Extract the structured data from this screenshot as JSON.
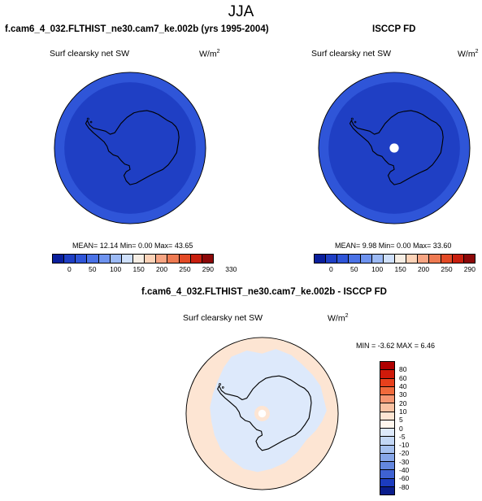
{
  "season": "JJA",
  "panels": [
    {
      "title": "f.cam6_4_032.FLTHIST_ne30.cam7_ke.002b (yrs 1995-2004)",
      "var_name": "Surf clearsky net SW",
      "units_base": "W/m",
      "units_exp": "2",
      "stats": "MEAN=  12.14  Min=   0.00  Max=  43.65"
    },
    {
      "title": "ISCCP FD",
      "var_name": "Surf clearsky net SW",
      "units_base": "W/m",
      "units_exp": "2",
      "stats": "MEAN=   9.98  Min=   0.00  Max=  33.60"
    },
    {
      "title": "f.cam6_4_032.FLTHIST_ne30.cam7_ke.002b - ISCCP FD",
      "var_name": "Surf clearsky net SW",
      "units_base": "W/m",
      "units_exp": "2",
      "stats": "MIN =  -3.62 MAX =   6.46"
    }
  ],
  "colorbar_abs": {
    "colors": [
      "#0a1f9c",
      "#1f3fc4",
      "#2f55d8",
      "#4a72e6",
      "#6e93ef",
      "#9cbaf5",
      "#cfe0fb",
      "#f6eee4",
      "#fcd3b8",
      "#f7a583",
      "#ee7a52",
      "#e34a26",
      "#c81f0e",
      "#8c0808"
    ],
    "labels": [
      "0",
      "50",
      "100",
      "150",
      "200",
      "250",
      "290",
      "330"
    ]
  },
  "colorbar_diff": {
    "colors": [
      "#b00000",
      "#cf1a0a",
      "#e8401c",
      "#f06a3c",
      "#f59672",
      "#f9c2a3",
      "#fde5d3",
      "#fff7ee",
      "#dde9fb",
      "#c3d7f5",
      "#a6c1ef",
      "#86a6e8",
      "#6387df",
      "#3f62d2",
      "#1c3cbf",
      "#0a1d8c"
    ],
    "labels": [
      "80",
      "60",
      "40",
      "30",
      "20",
      "10",
      "5",
      "0",
      "-5",
      "-10",
      "-20",
      "-30",
      "-40",
      "-60",
      "-80"
    ]
  },
  "colors": {
    "map_ocean_abs": "#2f55d8",
    "map_land_abs": "#1f3fc4",
    "diff_far": "#fde5d3",
    "diff_near": "#dde9fb",
    "coast": "#000000",
    "pole_hole": "#ffffff"
  }
}
